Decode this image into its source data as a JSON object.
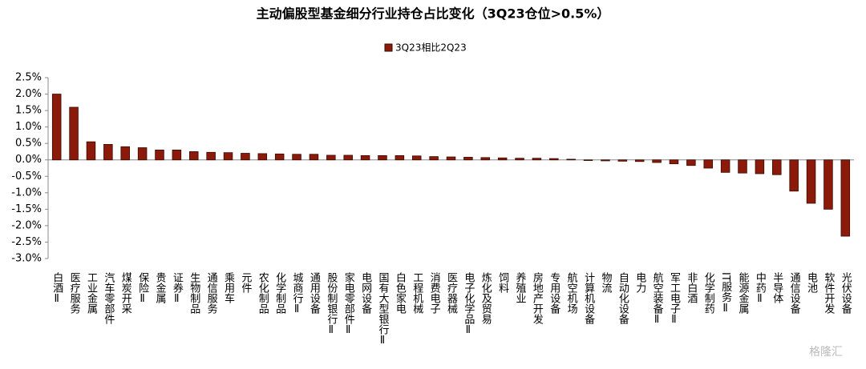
{
  "chart_data": {
    "type": "bar",
    "title": "主动偏股型基金细分行业持仓占比变化（3Q23仓位>0.5%）",
    "categories": [
      "白酒Ⅱ",
      "医疗服务",
      "工业金属",
      "汽车零部件",
      "煤炭开采",
      "保险Ⅱ",
      "贵金属",
      "证券Ⅱ",
      "生物制品",
      "通信服务",
      "乘用车",
      "元件",
      "农化制品",
      "化学制品",
      "城商行Ⅱ",
      "通用设备",
      "股份制银行Ⅱ",
      "家电零部件Ⅱ",
      "电网设备",
      "国有大型银行Ⅱ",
      "白色家电",
      "工程机械",
      "消费电子",
      "医疗器械",
      "电子化学品Ⅱ",
      "炼化及贸易",
      "饲料",
      "养殖业",
      "房地产开发",
      "专用设备",
      "航空机场",
      "计算机设备",
      "物流",
      "自动化设备",
      "电力",
      "航空装备Ⅱ",
      "军工电子Ⅱ",
      "非白酒",
      "化学制药",
      "IT服务Ⅱ",
      "能源金属",
      "中药Ⅱ",
      "半导体",
      "通信设备",
      "电池",
      "软件开发",
      "光伏设备"
    ],
    "series": [
      {
        "name": "3Q23相比2Q23",
        "color": "#8b1a0a",
        "values": [
          2.0,
          1.6,
          0.55,
          0.47,
          0.4,
          0.37,
          0.3,
          0.3,
          0.25,
          0.23,
          0.22,
          0.2,
          0.19,
          0.18,
          0.17,
          0.17,
          0.14,
          0.14,
          0.13,
          0.13,
          0.13,
          0.12,
          0.1,
          0.09,
          0.08,
          0.07,
          0.06,
          0.05,
          0.05,
          0.04,
          0.02,
          -0.02,
          -0.03,
          -0.04,
          -0.05,
          -0.08,
          -0.12,
          -0.17,
          -0.25,
          -0.38,
          -0.4,
          -0.42,
          -0.45,
          -0.95,
          -1.32,
          -1.5,
          -2.32
        ]
      }
    ],
    "ylim": [
      -3.0,
      2.5
    ],
    "yticks": [
      {
        "value": 2.5,
        "label": "2.5%"
      },
      {
        "value": 2.0,
        "label": "2.0%"
      },
      {
        "value": 1.5,
        "label": "1.5%"
      },
      {
        "value": 1.0,
        "label": "1.0%"
      },
      {
        "value": 0.5,
        "label": "0.5%"
      },
      {
        "value": 0,
        "label": "0.0%"
      },
      {
        "value": -0.5,
        "label": "-0.5%"
      },
      {
        "value": -1.0,
        "label": "-1.0%"
      },
      {
        "value": -1.5,
        "label": "-1.5%"
      },
      {
        "value": -2.0,
        "label": "-2.0%"
      },
      {
        "value": -2.5,
        "label": "-2.5%"
      },
      {
        "value": -3.0,
        "label": "-3.0%"
      }
    ],
    "legend": "top",
    "watermark": "格隆汇"
  }
}
